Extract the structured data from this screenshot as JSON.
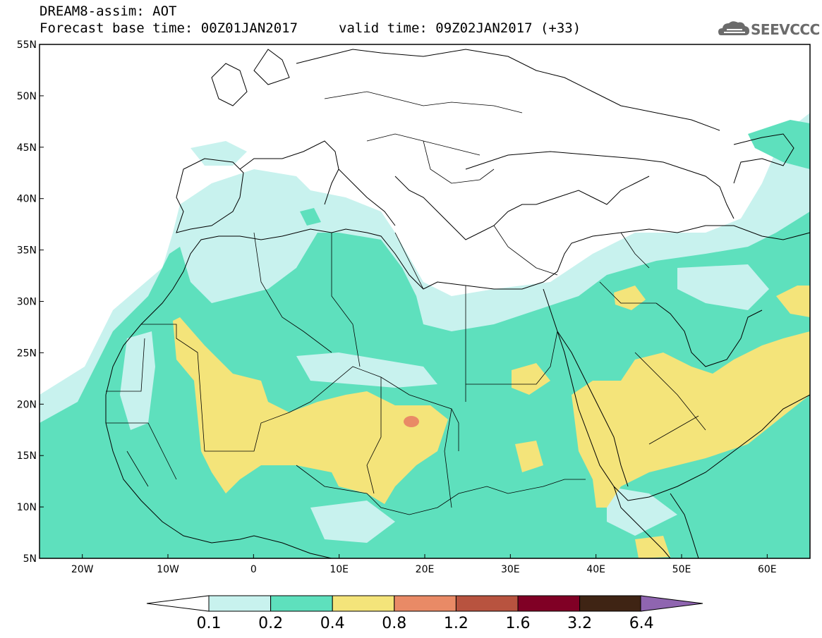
{
  "header": {
    "line1": "DREAM8-assim: AOT",
    "line2": "Forecast base time: 00Z01JAN2017",
    "valid": "valid time: 09Z02JAN2017 (+33)"
  },
  "logo": {
    "text": "SEEVCCC",
    "icon": "cloud-icon"
  },
  "axes": {
    "lat_labels": [
      "55N",
      "50N",
      "45N",
      "40N",
      "35N",
      "30N",
      "25N",
      "20N",
      "15N",
      "10N",
      "5N"
    ],
    "lon_labels": [
      "20W",
      "10W",
      "0",
      "10E",
      "20E",
      "30E",
      "40E",
      "50E",
      "60E"
    ],
    "lat_range": [
      5,
      55
    ],
    "lon_range": [
      -25,
      65
    ]
  },
  "colorbar": {
    "labels": [
      "0.1",
      "0.2",
      "0.4",
      "0.8",
      "1.2",
      "1.6",
      "3.2",
      "6.4"
    ],
    "colors": [
      "#c8f2ee",
      "#5ee0bd",
      "#f4e47a",
      "#e98a66",
      "#b8533f",
      "#800025",
      "#3f2414",
      "#8f65b0"
    ],
    "below_color": "#ffffff"
  },
  "colors": {
    "aot_0_1": "#c8f2ee",
    "aot_0_2": "#5ee0bd",
    "aot_0_4": "#f4e47a",
    "aot_0_8": "#e98a66",
    "coast": "#000000"
  }
}
